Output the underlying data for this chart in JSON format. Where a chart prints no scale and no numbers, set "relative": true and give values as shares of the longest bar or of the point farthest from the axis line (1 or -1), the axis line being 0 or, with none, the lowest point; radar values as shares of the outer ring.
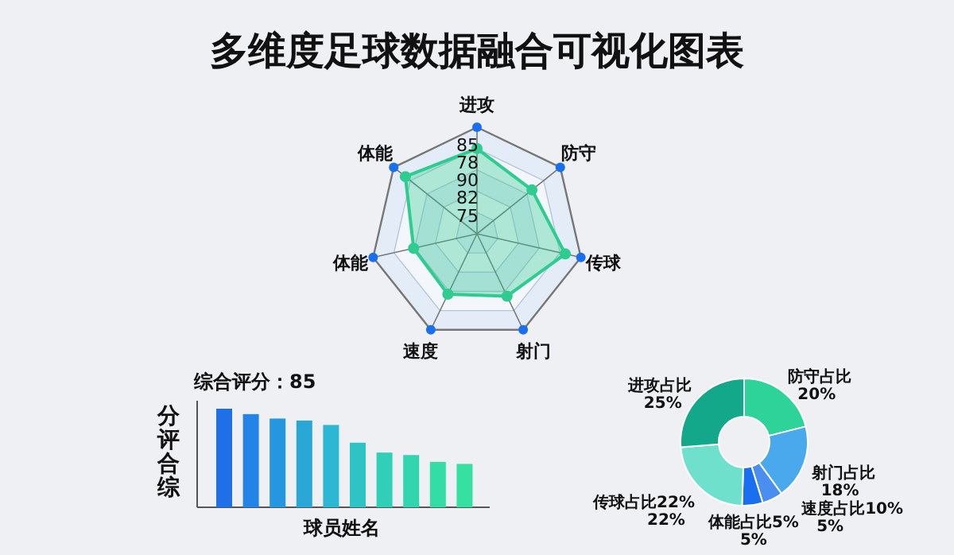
{
  "chart_data": [
    {
      "type": "radar",
      "title": "多维度足球数据融合可视化图表",
      "categories": [
        "进攻",
        "防守",
        "传球",
        "射门",
        "速度",
        "体能",
        "体能"
      ],
      "relative": true,
      "marker": "circle",
      "annotations": [
        "85",
        "78",
        "90",
        "82",
        "75"
      ],
      "series": [
        {
          "color": "#2ecc8f",
          "values": [
            0.8,
            0.66,
            0.85,
            0.65,
            0.63,
            0.61,
            0.86
          ]
        }
      ]
    },
    {
      "type": "bar",
      "subtitle": "综合评分：85",
      "xlabel": "球员姓名",
      "ylabel": "分评合综",
      "relative": true,
      "categories": [
        null,
        null,
        null,
        null,
        null,
        null,
        null,
        null,
        null,
        null
      ],
      "values": [
        1,
        0.945,
        0.9,
        0.88,
        0.835,
        0.655,
        0.555,
        0.53,
        0.46,
        0.44
      ],
      "colors": [
        "#1f6fe8",
        "#2383e6",
        "#2596e0",
        "#29a8d8",
        "#2cb8d2",
        "#2ec4c6",
        "#30cfb8",
        "#32d6ae",
        "#34dca6",
        "#36e0a0"
      ]
    },
    {
      "type": "donut",
      "categories": [
        "防守占比",
        "射门占比",
        "速度占比10%",
        "体能占比5%",
        "传球占比22%",
        "进攻占比"
      ],
      "values": [
        20,
        18,
        5,
        5,
        22,
        25
      ],
      "value_labels": [
        "20%",
        "18%",
        "5%",
        "5%",
        "22%",
        "25%"
      ],
      "colors": [
        "#2ed39a",
        "#4aa8ec",
        "#4b8ef0",
        "#1a6ff0",
        "#6ee0cc",
        "#13a88a"
      ]
    }
  ]
}
